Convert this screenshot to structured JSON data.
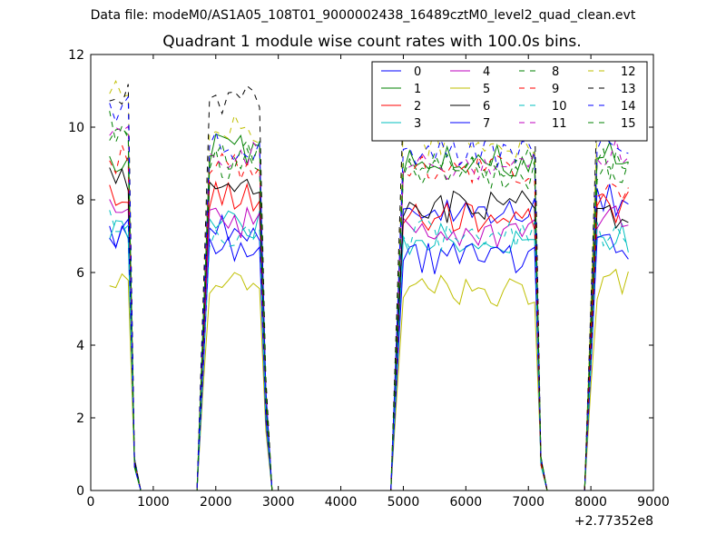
{
  "figure": {
    "suptitle": "Data file: modeM0/AS1A05_108T01_9000002438_16489cztM0_level2_quad_clean.evt"
  },
  "chart_data": {
    "type": "line",
    "title": "Quadrant 1 module wise count rates with 100.0s bins.",
    "xlabel": "",
    "ylabel": "",
    "x_offset_label": "+2.77352e8",
    "xlim": [
      0,
      9000
    ],
    "ylim": [
      0,
      12
    ],
    "xticks": [
      0,
      1000,
      2000,
      3000,
      4000,
      5000,
      6000,
      7000,
      8000,
      9000
    ],
    "yticks": [
      0,
      2,
      4,
      6,
      8,
      10,
      12
    ],
    "grid": false,
    "legend": {
      "placement": "top-right",
      "columns": 4
    },
    "x": [
      300,
      400,
      500,
      600,
      700,
      800,
      900,
      1000,
      1100,
      1200,
      1300,
      1400,
      1500,
      1600,
      1700,
      1800,
      1900,
      2000,
      2100,
      2200,
      2300,
      2400,
      2500,
      2600,
      2700,
      2800,
      2900,
      3000,
      3100,
      3200,
      3300,
      3400,
      3500,
      3600,
      3700,
      3800,
      3900,
      4000,
      4100,
      4200,
      4300,
      4400,
      4500,
      4600,
      4700,
      4800,
      4900,
      5000,
      5100,
      5200,
      5300,
      5400,
      5500,
      5600,
      5700,
      5800,
      5900,
      6000,
      6100,
      6200,
      6300,
      6400,
      6500,
      6600,
      6700,
      6800,
      6900,
      7000,
      7100,
      7200,
      7300,
      7400,
      7500,
      7600,
      7700,
      7800,
      7900,
      8000,
      8100,
      8200,
      8300,
      8400,
      8500,
      8600
    ],
    "series": [
      {
        "name": "0",
        "color": "#0000ff",
        "dashed": false,
        "levels": [
          6.9,
          7.2,
          7.6,
          8.0
        ],
        "seed": 1
      },
      {
        "name": "1",
        "color": "#008000",
        "dashed": false,
        "levels": [
          8.8,
          9.4,
          9.1,
          9.2
        ],
        "seed": 2
      },
      {
        "name": "2",
        "color": "#ff0000",
        "dashed": false,
        "levels": [
          8.1,
          8.1,
          7.5,
          7.8
        ],
        "seed": 3
      },
      {
        "name": "3",
        "color": "#00bfbf",
        "dashed": false,
        "levels": [
          7.2,
          7.3,
          6.9,
          7.0
        ],
        "seed": 4
      },
      {
        "name": "4",
        "color": "#bf00bf",
        "dashed": false,
        "levels": [
          7.6,
          7.4,
          7.1,
          7.5
        ],
        "seed": 5
      },
      {
        "name": "5",
        "color": "#bfbf00",
        "dashed": false,
        "levels": [
          6.0,
          5.8,
          5.5,
          5.7
        ],
        "seed": 6
      },
      {
        "name": "6",
        "color": "#000000",
        "dashed": false,
        "levels": [
          8.6,
          8.2,
          7.8,
          7.6
        ],
        "seed": 7
      },
      {
        "name": "7",
        "color": "#0000ff",
        "dashed": false,
        "levels": [
          7.1,
          6.6,
          6.4,
          6.7
        ],
        "seed": 8
      },
      {
        "name": "8",
        "color": "#008000",
        "dashed": true,
        "levels": [
          9.7,
          9.0,
          8.7,
          8.8
        ],
        "seed": 9
      },
      {
        "name": "9",
        "color": "#ff0000",
        "dashed": true,
        "levels": [
          9.1,
          8.9,
          8.8,
          8.4
        ],
        "seed": 10
      },
      {
        "name": "10",
        "color": "#00bfbf",
        "dashed": true,
        "levels": [
          7.4,
          7.0,
          7.0,
          7.1
        ],
        "seed": 11
      },
      {
        "name": "11",
        "color": "#bf00bf",
        "dashed": true,
        "levels": [
          9.6,
          9.3,
          8.9,
          9.3
        ],
        "seed": 12
      },
      {
        "name": "12",
        "color": "#bfbf00",
        "dashed": true,
        "levels": [
          10.9,
          10.0,
          9.6,
          10.1
        ],
        "seed": 13
      },
      {
        "name": "13",
        "color": "#000000",
        "dashed": true,
        "levels": [
          11.0,
          10.7,
          10.4,
          10.2
        ],
        "seed": 14
      },
      {
        "name": "14",
        "color": "#0000ff",
        "dashed": true,
        "levels": [
          10.4,
          9.5,
          9.3,
          9.4
        ],
        "seed": 15
      },
      {
        "name": "15",
        "color": "#008000",
        "dashed": true,
        "levels": [
          10.0,
          9.2,
          9.0,
          9.0
        ],
        "seed": 16
      }
    ],
    "active_ranges": [
      [
        300,
        600
      ],
      [
        1900,
        2700
      ],
      [
        5000,
        7100
      ],
      [
        8100,
        8600
      ]
    ]
  }
}
